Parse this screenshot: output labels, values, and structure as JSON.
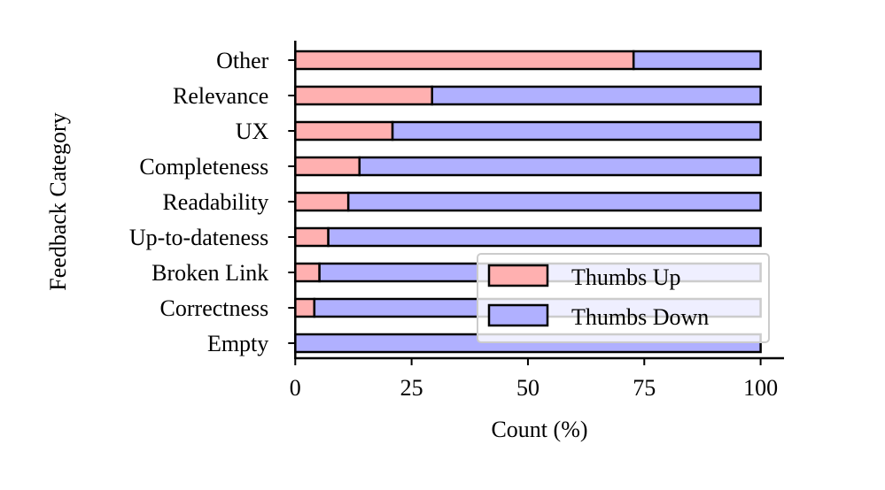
{
  "chart_data": {
    "type": "bar",
    "orientation": "horizontal",
    "stacked": true,
    "title": "",
    "xlabel": "Count (%)",
    "ylabel": "Feedback Category",
    "xlim": [
      0,
      105
    ],
    "xticks": [
      0,
      25,
      50,
      75,
      100
    ],
    "grid": false,
    "legend_position": "lower-right",
    "categories": [
      "Other",
      "Relevance",
      "UX",
      "Completeness",
      "Readability",
      "Up-to-dateness",
      "Broken Link",
      "Correctness",
      "Empty"
    ],
    "series": [
      {
        "name": "Thumbs Up",
        "color": "#ffb0b0",
        "values": [
          72.7,
          29.4,
          20.9,
          13.8,
          11.4,
          7.1,
          5.2,
          4.1,
          0
        ]
      },
      {
        "name": "Thumbs Down",
        "color": "#b0b0ff",
        "values": [
          27.3,
          70.6,
          79.1,
          86.2,
          88.6,
          92.9,
          94.8,
          95.9,
          100
        ]
      }
    ]
  }
}
